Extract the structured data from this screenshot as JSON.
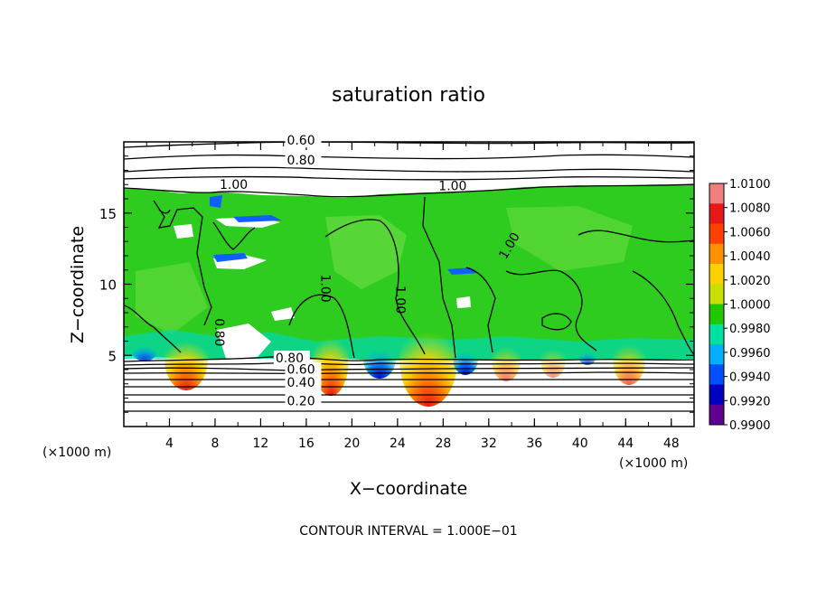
{
  "chart_data": {
    "type": "heatmap",
    "title": "saturation ratio",
    "xlabel": "X−coordinate",
    "ylabel": "Z−coordinate",
    "x_unit_left": "(×1000 m)",
    "x_unit_right": "(×1000 m)",
    "footer": "CONTOUR INTERVAL = 1.000E−01",
    "xlim": [
      0,
      50
    ],
    "ylim": [
      0,
      20
    ],
    "x_ticks": [
      "4",
      "8",
      "12",
      "16",
      "20",
      "24",
      "28",
      "32",
      "36",
      "40",
      "44",
      "48"
    ],
    "y_ticks": [
      "5",
      "10",
      "15"
    ],
    "colorbar": {
      "min": 0.99,
      "max": 1.01,
      "labels": [
        "1.0100",
        "1.0080",
        "1.0060",
        "1.0040",
        "1.0020",
        "1.0000",
        "0.9980",
        "0.9960",
        "0.9940",
        "0.9920",
        "0.9900"
      ],
      "colors": [
        "#f08080",
        "#e81818",
        "#ff4000",
        "#ff9000",
        "#ffd000",
        "#c8e000",
        "#20c800",
        "#00e0a0",
        "#00b0ff",
        "#0050ff",
        "#0000c0",
        "#600090"
      ]
    },
    "contour_labels": [
      {
        "text": "0.60",
        "x": 14.3,
        "z": 19.8
      },
      {
        "text": "0.80",
        "x": 14.3,
        "z": 18.4
      },
      {
        "text": "1.00",
        "x": 8.4,
        "z": 16.7
      },
      {
        "text": "1.00",
        "x": 27.6,
        "z": 16.6
      },
      {
        "text": "1.00",
        "x": 17.3,
        "z": 10.7
      },
      {
        "text": "1.00",
        "x": 23.9,
        "z": 9.9
      },
      {
        "text": "1.00",
        "x": 33.5,
        "z": 11.7
      },
      {
        "text": "0.80",
        "x": 8.0,
        "z": 7.6
      },
      {
        "text": "0.80",
        "x": 13.3,
        "z": 4.5
      },
      {
        "text": "0.60",
        "x": 14.3,
        "z": 3.7
      },
      {
        "text": "0.40",
        "x": 14.3,
        "z": 2.8
      },
      {
        "text": "0.20",
        "x": 14.3,
        "z": 1.5
      }
    ]
  }
}
